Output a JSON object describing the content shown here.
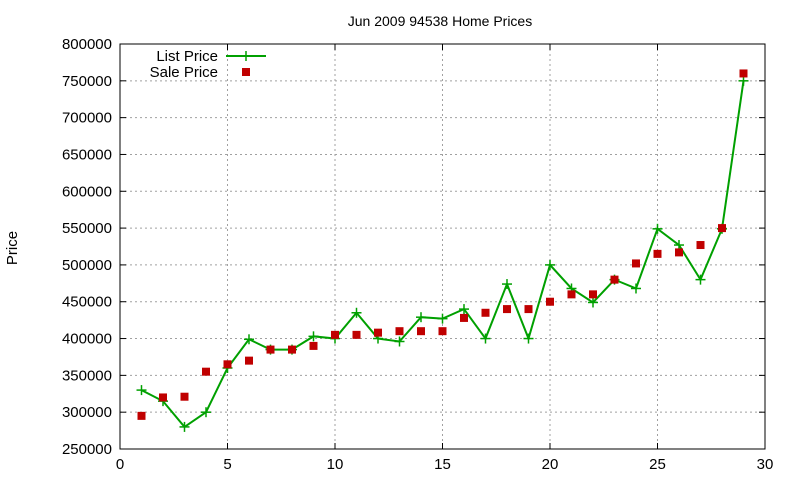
{
  "chart_data": {
    "type": "line",
    "title": "Jun 2009 94538 Home Prices",
    "xlabel": "",
    "ylabel": "Price",
    "xlim": [
      0,
      30
    ],
    "ylim": [
      250000,
      800000
    ],
    "xticks": [
      0,
      5,
      10,
      15,
      20,
      25,
      30
    ],
    "yticks": [
      250000,
      300000,
      350000,
      400000,
      450000,
      500000,
      550000,
      600000,
      650000,
      700000,
      750000,
      800000
    ],
    "grid": true,
    "legend_position": "top-left",
    "series": [
      {
        "name": "List Price",
        "style": "line-plus",
        "color": "#00a000",
        "x": [
          1,
          2,
          3,
          4,
          5,
          6,
          7,
          8,
          9,
          10,
          11,
          12,
          13,
          14,
          15,
          16,
          17,
          18,
          19,
          20,
          21,
          22,
          23,
          24,
          25,
          26,
          27,
          28,
          29
        ],
        "y": [
          330000,
          315000,
          280000,
          300000,
          360000,
          399000,
          385000,
          385000,
          403000,
          400000,
          435000,
          400000,
          396000,
          429000,
          427000,
          440000,
          400000,
          474000,
          400000,
          500000,
          468000,
          449000,
          480000,
          468000,
          549000,
          527000,
          480000,
          549000,
          750000
        ]
      },
      {
        "name": "Sale Price",
        "style": "square",
        "color": "#c00000",
        "x": [
          1,
          2,
          3,
          4,
          5,
          6,
          7,
          8,
          9,
          10,
          11,
          12,
          13,
          14,
          15,
          16,
          17,
          18,
          19,
          20,
          21,
          22,
          23,
          24,
          25,
          26,
          27,
          28,
          29
        ],
        "y": [
          295000,
          320000,
          321000,
          355000,
          365000,
          370000,
          385000,
          385000,
          390000,
          405000,
          405000,
          408000,
          410000,
          410000,
          410000,
          428000,
          435000,
          440000,
          440000,
          450000,
          460000,
          460000,
          480000,
          502000,
          515000,
          517000,
          527000,
          550000,
          760000
        ]
      }
    ]
  }
}
